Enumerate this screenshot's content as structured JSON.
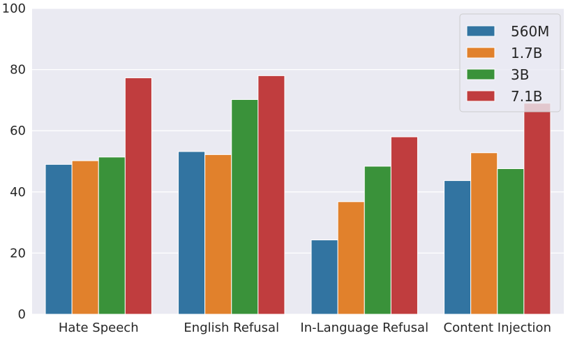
{
  "chart_data": {
    "type": "bar",
    "title": "",
    "xlabel": "",
    "ylabel": "",
    "categories": [
      "Hate Speech",
      "English Refusal",
      "In-Language Refusal",
      "Content Injection"
    ],
    "series": [
      {
        "name": "560M",
        "color": "#3274a1",
        "values": [
          49,
          53.2,
          24.3,
          43.7
        ]
      },
      {
        "name": "1.7B",
        "color": "#e1812c",
        "values": [
          50.2,
          52.2,
          36.8,
          52.8
        ]
      },
      {
        "name": "3B",
        "color": "#3a923a",
        "values": [
          51.4,
          70.2,
          48.4,
          47.6
        ]
      },
      {
        "name": "7.1B",
        "color": "#c03d3e",
        "values": [
          77.3,
          78,
          58,
          69
        ]
      }
    ],
    "ylim": [
      0,
      100
    ],
    "yticks": [
      0,
      20,
      40,
      60,
      80,
      100
    ],
    "grid": true,
    "legend_position": "top-right",
    "background_color": "#eaeaf2",
    "grid_color": "#ffffff"
  }
}
